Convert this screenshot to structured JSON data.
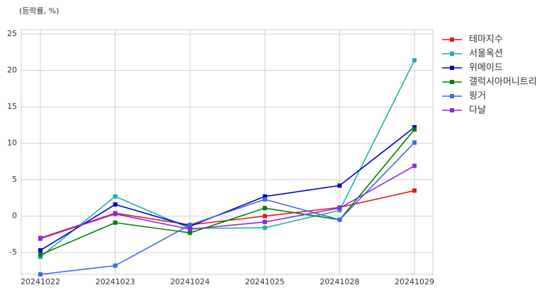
{
  "chart_data": {
    "type": "line",
    "y_label": "(등락률, %)",
    "categories": [
      "20241022",
      "20241023",
      "20241024",
      "20241025",
      "20241028",
      "20241029"
    ],
    "series": [
      {
        "name": "테마지수",
        "color": "#e31a1c",
        "values": [
          -3.0,
          0.4,
          -1.2,
          0.0,
          1.2,
          3.5
        ]
      },
      {
        "name": "서울옥션",
        "color": "#20b2aa",
        "values": [
          -5.6,
          2.7,
          -1.7,
          -1.6,
          0.8,
          21.4
        ]
      },
      {
        "name": "위메이드",
        "color": "#0000cd",
        "values": [
          -4.7,
          1.6,
          -1.4,
          2.7,
          4.2,
          12.2
        ]
      },
      {
        "name": "갤럭시아머니트리",
        "color": "#008000",
        "values": [
          -5.3,
          -0.9,
          -2.3,
          1.1,
          -0.5,
          11.9
        ]
      },
      {
        "name": "핑거",
        "color": "#4169e1",
        "values": [
          -8.0,
          -6.8,
          -1.2,
          2.3,
          -0.5,
          10.1
        ]
      },
      {
        "name": "다날",
        "color": "#8a2be2",
        "values": [
          -3.1,
          0.3,
          -1.8,
          -0.8,
          1.1,
          6.9
        ]
      }
    ],
    "ylim": [
      -8,
      25.6
    ],
    "yticks": [
      -5,
      0,
      5,
      10,
      15,
      20,
      25
    ],
    "grid": true,
    "legend": "outside-right"
  }
}
